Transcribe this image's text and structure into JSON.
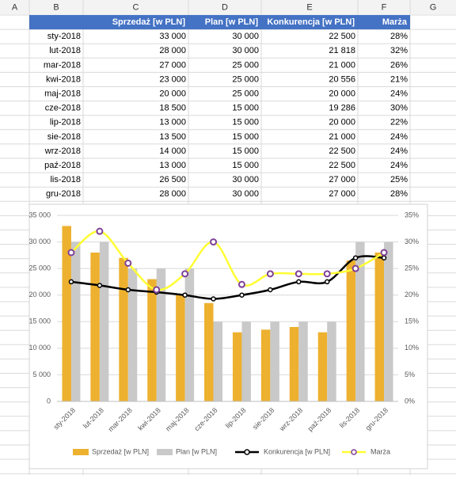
{
  "sheet": {
    "columns": [
      "A",
      "B",
      "C",
      "D",
      "E",
      "F",
      "G"
    ],
    "header": [
      "Sprzedaż [w PLN]",
      "Plan [w PLN]",
      "Konkurencja [w PLN]",
      "Marża"
    ],
    "rows": [
      [
        "sty-2018",
        "33 000",
        "30 000",
        "22 500",
        "28%"
      ],
      [
        "lut-2018",
        "28 000",
        "30 000",
        "21 818",
        "32%"
      ],
      [
        "mar-2018",
        "27 000",
        "25 000",
        "21 000",
        "26%"
      ],
      [
        "kwi-2018",
        "23 000",
        "25 000",
        "20 556",
        "21%"
      ],
      [
        "maj-2018",
        "20 000",
        "25 000",
        "20 000",
        "24%"
      ],
      [
        "cze-2018",
        "18 500",
        "15 000",
        "19 286",
        "30%"
      ],
      [
        "lip-2018",
        "13 000",
        "15 000",
        "20 000",
        "22%"
      ],
      [
        "sie-2018",
        "13 500",
        "15 000",
        "21 000",
        "24%"
      ],
      [
        "wrz-2018",
        "14 000",
        "15 000",
        "22 500",
        "24%"
      ],
      [
        "paź-2018",
        "13 000",
        "15 000",
        "22 500",
        "24%"
      ],
      [
        "lis-2018",
        "26 500",
        "30 000",
        "27 000",
        "25%"
      ],
      [
        "gru-2018",
        "28 000",
        "30 000",
        "27 000",
        "28%"
      ]
    ]
  },
  "chart_data": {
    "type": "combo",
    "categories": [
      "sty-2018",
      "lut-2018",
      "mar-2018",
      "kwi-2018",
      "maj-2018",
      "cze-2018",
      "lip-2018",
      "sie-2018",
      "wrz-2018",
      "paź-2018",
      "lis-2018",
      "gru-2018"
    ],
    "series": [
      {
        "name": "Sprzedaż [w PLN]",
        "type": "bar",
        "color": "#edb12f",
        "values": [
          33000,
          28000,
          27000,
          23000,
          20000,
          18500,
          13000,
          13500,
          14000,
          13000,
          26500,
          28000
        ]
      },
      {
        "name": "Plan [w PLN]",
        "type": "bar",
        "color": "#c9c9c9",
        "values": [
          30000,
          30000,
          25000,
          25000,
          25000,
          15000,
          15000,
          15000,
          15000,
          15000,
          30000,
          30000
        ]
      },
      {
        "name": "Konkurencja [w PLN]",
        "type": "line",
        "color": "#000000",
        "values": [
          22500,
          21818,
          21000,
          20556,
          20000,
          19286,
          20000,
          21000,
          22500,
          22500,
          27000,
          27000
        ]
      },
      {
        "name": "Marża",
        "type": "line",
        "axis": "y2",
        "color": "#ffff33",
        "marker_color": "#7f3f98",
        "values": [
          28,
          32,
          26,
          21,
          24,
          30,
          22,
          24,
          24,
          24,
          25,
          28
        ]
      }
    ],
    "ylim": [
      0,
      35000
    ],
    "yticks": [
      0,
      {
        "value": 5000,
        "label": "5 000"
      },
      {
        "value": 10000,
        "label": "10 000"
      },
      {
        "value": 15000,
        "label": "15 000"
      },
      {
        "value": 20000,
        "label": "20 000"
      },
      {
        "value": 25000,
        "label": "25 000"
      },
      {
        "value": 30000,
        "label": "30 000"
      },
      {
        "value": 35000,
        "label": "35 000"
      }
    ],
    "y2lim": [
      0,
      35
    ],
    "y2ticks": [
      {
        "value": 0,
        "label": "0%"
      },
      {
        "value": 5,
        "label": "5%"
      },
      {
        "value": 10,
        "label": "10%"
      },
      {
        "value": 15,
        "label": "15%"
      },
      {
        "value": 20,
        "label": "20%"
      },
      {
        "value": 25,
        "label": "25%"
      },
      {
        "value": 30,
        "label": "30%"
      },
      {
        "value": 35,
        "label": "35%"
      }
    ],
    "grid": true,
    "legend": "bottom"
  }
}
